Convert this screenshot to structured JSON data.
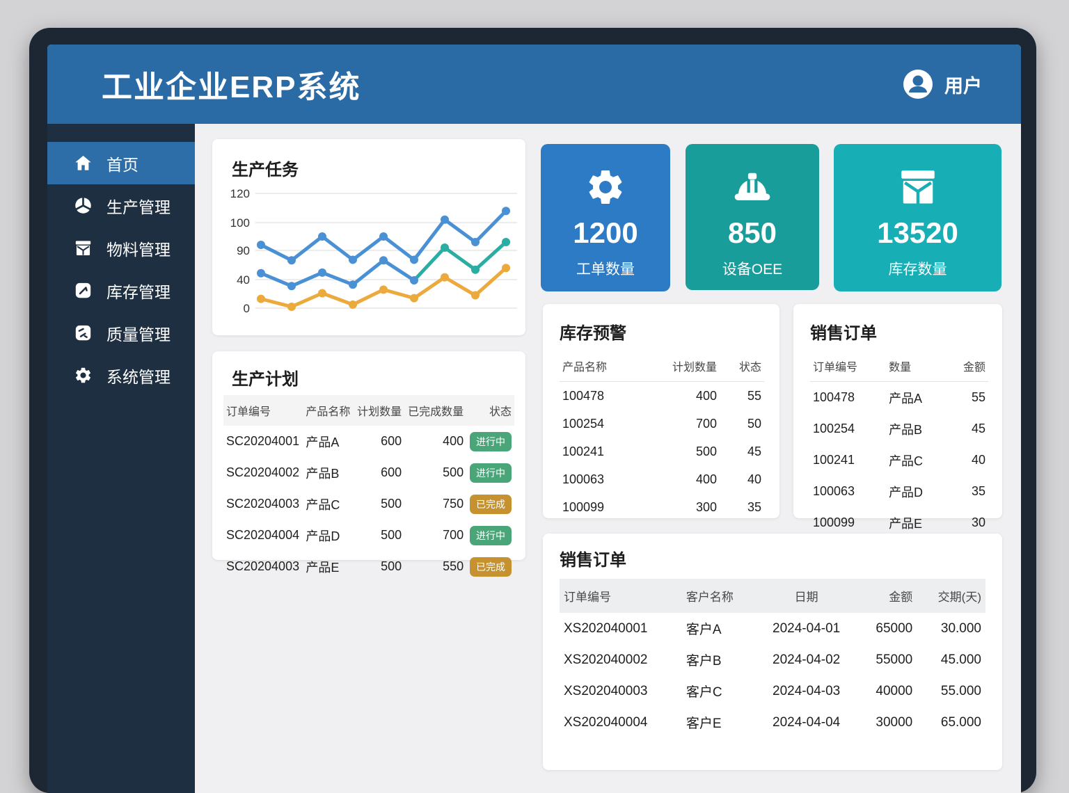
{
  "header": {
    "title": "工业企业ERP系统",
    "user_label": "用户"
  },
  "sidebar": {
    "items": [
      {
        "label": "首页",
        "icon": "home-icon",
        "active": true
      },
      {
        "label": "生产管理",
        "icon": "pie-chart-icon",
        "active": false
      },
      {
        "label": "物料管理",
        "icon": "package-icon",
        "active": false
      },
      {
        "label": "库存管理",
        "icon": "clipboard-edit-icon",
        "active": false
      },
      {
        "label": "质量管理",
        "icon": "transfer-icon",
        "active": false
      },
      {
        "label": "系统管理",
        "icon": "gear-icon",
        "active": false
      }
    ]
  },
  "kpis": [
    {
      "value": "1200",
      "label": "工单数量",
      "icon": "gear-icon",
      "color": "#2d7ac5"
    },
    {
      "value": "850",
      "label": "设备OEE",
      "icon": "hard-hat-icon",
      "color": "#199d9b"
    },
    {
      "value": "13520",
      "label": "库存数量",
      "icon": "package-icon",
      "color": "#17aeb6"
    }
  ],
  "chart_data": {
    "type": "line",
    "title": "生产任务",
    "x": [
      1,
      2,
      3,
      4,
      5,
      6,
      7,
      8,
      9
    ],
    "yticks": [
      0,
      40,
      90,
      100,
      120
    ],
    "ylim": [
      0,
      130
    ],
    "grid": true,
    "legend_position": "none",
    "series": [
      {
        "name": "series-1",
        "color": "#4a90d5",
        "values": [
          92,
          73,
          95,
          74,
          95,
          74,
          102,
          93,
          108
        ]
      },
      {
        "name": "series-2",
        "color": "#4a90d5",
        "color2": "#2aada3",
        "split_at": 6,
        "values": [
          51,
          31,
          52,
          33,
          73,
          39,
          91,
          57,
          93
        ]
      },
      {
        "name": "series-3",
        "color": "#eca93c",
        "values": [
          13,
          2,
          21,
          5,
          26,
          14,
          44,
          18,
          60
        ]
      }
    ]
  },
  "plan_table": {
    "title": "生产计划",
    "headers": [
      "订单编号",
      "产品名称",
      "计划数量",
      "已完成数量",
      "状态"
    ],
    "rows": [
      [
        "SC20204001",
        "产品A",
        "600",
        "400",
        {
          "t": "进行中",
          "badge": "green"
        }
      ],
      [
        "SC20204002",
        "产品B",
        "600",
        "500",
        {
          "t": "进行中",
          "badge": "green"
        }
      ],
      [
        "SC20204003",
        "产品C",
        "500",
        "750",
        {
          "t": "已完成",
          "badge": "orange"
        }
      ],
      [
        "SC20204004",
        "产品D",
        "500",
        "700",
        {
          "t": "进行中",
          "badge": "green"
        }
      ],
      [
        "SC20204003",
        "产品E",
        "500",
        "550",
        {
          "t": "已完成",
          "badge": "orange"
        }
      ]
    ]
  },
  "inventory_table": {
    "title": "库存预警",
    "headers": [
      "产品名称",
      "计划数量",
      "状态"
    ],
    "rows": [
      [
        "100478",
        "400",
        "55"
      ],
      [
        "100254",
        "700",
        "50"
      ],
      [
        "100241",
        "500",
        "45"
      ],
      [
        "100063",
        "400",
        "40"
      ],
      [
        "100099",
        "300",
        "35"
      ]
    ]
  },
  "sales_table": {
    "title": "销售订单",
    "headers": [
      "订单编号",
      "数量",
      "金额"
    ],
    "rows": [
      [
        "100478",
        "产品A",
        "55"
      ],
      [
        "100254",
        "产品B",
        "45"
      ],
      [
        "100241",
        "产品C",
        "40"
      ],
      [
        "100063",
        "产品D",
        "35"
      ],
      [
        "100099",
        "产品E",
        "30"
      ]
    ]
  },
  "orders_table": {
    "title": "销售订单",
    "headers": [
      "订单编号",
      "客户名称",
      "日期",
      "金额",
      "交期(天)"
    ],
    "rows": [
      [
        "XS202040001",
        "客户A",
        "2024-04-01",
        "65000",
        "30.000"
      ],
      [
        "XS202040002",
        "客户B",
        "2024-04-02",
        "55000",
        "45.000"
      ],
      [
        "XS202040003",
        "客户C",
        "2024-04-03",
        "40000",
        "55.000"
      ],
      [
        "XS202040004",
        "客户E",
        "2024-04-04",
        "30000",
        "65.000"
      ]
    ]
  },
  "colors": {
    "header_blue": "#2b6ba5",
    "sidebar_navy": "#1e2f41",
    "sidebar_active": "#2d6ea8",
    "kpi_blue": "#2d7ac5",
    "kpi_teal": "#199d9b",
    "kpi_cyan": "#17aeb6",
    "badge_green": "#4aa578",
    "badge_orange": "#c5922f",
    "line_blue": "#4a90d5",
    "line_teal": "#2aada3",
    "line_orange": "#eca93c"
  }
}
